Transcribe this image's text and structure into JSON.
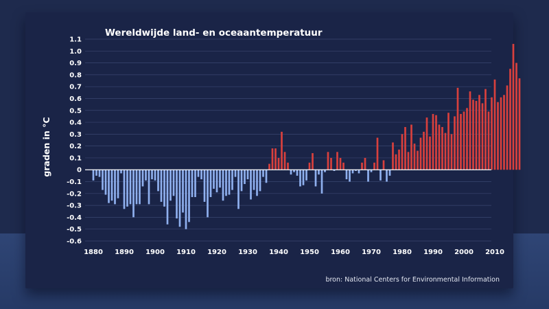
{
  "source_text": "bron: National Centers for Environmental Information",
  "chart_data": {
    "type": "bar",
    "title": "Wereldwijde land- en oceaantemperatuur",
    "xlabel": "",
    "ylabel": "graden in °C",
    "x_range": [
      1880,
      2018
    ],
    "ylim": [
      -0.6,
      1.1
    ],
    "x_ticks": [
      "1880",
      "1890",
      "1900",
      "1910",
      "1920",
      "1930",
      "1940",
      "1950",
      "1960",
      "1970",
      "1980",
      "1990",
      "2000",
      "2010"
    ],
    "y_ticks": [
      "1.1",
      "1.0",
      "0.9",
      "0.8",
      "0.7",
      "0.6",
      "0.5",
      "0.4",
      "0.3",
      "0.2",
      "0.1",
      "0",
      "-0.1",
      "-0.2",
      "-0.3",
      "-0.4",
      "-0.5",
      "-0.6"
    ],
    "grid": true,
    "colors": {
      "positive": "#d9403d",
      "negative": "#8fb0ee",
      "zero_line": "#ffffff",
      "grid": "#3a4670",
      "text": "#ffffff"
    },
    "years": [
      1880,
      1881,
      1882,
      1883,
      1884,
      1885,
      1886,
      1887,
      1888,
      1889,
      1890,
      1891,
      1892,
      1893,
      1894,
      1895,
      1896,
      1897,
      1898,
      1899,
      1900,
      1901,
      1902,
      1903,
      1904,
      1905,
      1906,
      1907,
      1908,
      1909,
      1910,
      1911,
      1912,
      1913,
      1914,
      1915,
      1916,
      1917,
      1918,
      1919,
      1920,
      1921,
      1922,
      1923,
      1924,
      1925,
      1926,
      1927,
      1928,
      1929,
      1930,
      1931,
      1932,
      1933,
      1934,
      1935,
      1936,
      1937,
      1938,
      1939,
      1940,
      1941,
      1942,
      1943,
      1944,
      1945,
      1946,
      1947,
      1948,
      1949,
      1950,
      1951,
      1952,
      1953,
      1954,
      1955,
      1956,
      1957,
      1958,
      1959,
      1960,
      1961,
      1962,
      1963,
      1964,
      1965,
      1966,
      1967,
      1968,
      1969,
      1970,
      1971,
      1972,
      1973,
      1974,
      1975,
      1976,
      1977,
      1978,
      1979,
      1980,
      1981,
      1982,
      1983,
      1984,
      1985,
      1986,
      1987,
      1988,
      1989,
      1990,
      1991,
      1992,
      1993,
      1994,
      1995,
      1996,
      1997,
      1998,
      1999,
      2000,
      2001,
      2002,
      2003,
      2004,
      2005,
      2006,
      2007,
      2008,
      2009,
      2010,
      2011,
      2012,
      2013,
      2014,
      2015,
      2016,
      2017,
      2018
    ],
    "values": [
      -0.09,
      -0.05,
      -0.06,
      -0.17,
      -0.21,
      -0.28,
      -0.26,
      -0.29,
      -0.24,
      -0.03,
      -0.33,
      -0.31,
      -0.29,
      -0.4,
      -0.29,
      -0.29,
      -0.14,
      -0.09,
      -0.29,
      -0.08,
      -0.09,
      -0.18,
      -0.27,
      -0.31,
      -0.46,
      -0.26,
      -0.22,
      -0.41,
      -0.48,
      -0.36,
      -0.5,
      -0.44,
      -0.23,
      -0.23,
      -0.06,
      -0.08,
      -0.27,
      -0.4,
      -0.23,
      -0.16,
      -0.19,
      -0.15,
      -0.26,
      -0.22,
      -0.21,
      -0.17,
      -0.06,
      -0.33,
      -0.18,
      -0.12,
      -0.08,
      -0.25,
      -0.17,
      -0.22,
      -0.18,
      -0.06,
      -0.11,
      0.05,
      0.18,
      0.18,
      0.1,
      0.32,
      0.15,
      0.06,
      -0.04,
      -0.02,
      -0.05,
      -0.14,
      -0.13,
      -0.09,
      0.06,
      0.14,
      -0.14,
      -0.04,
      -0.2,
      -0.02,
      0.15,
      0.1,
      -0.01,
      0.15,
      0.1,
      0.06,
      -0.08,
      -0.1,
      -0.03,
      -0.01,
      -0.03,
      0.06,
      0.1,
      -0.1,
      -0.02,
      0.06,
      0.27,
      -0.09,
      0.08,
      -0.1,
      -0.05,
      0.23,
      0.13,
      0.17,
      0.3,
      0.36,
      0.15,
      0.38,
      0.22,
      0.16,
      0.27,
      0.32,
      0.44,
      0.28,
      0.47,
      0.46,
      0.38,
      0.36,
      0.31,
      0.48,
      0.3,
      0.45,
      0.69,
      0.47,
      0.49,
      0.52,
      0.66,
      0.59,
      0.58,
      0.63,
      0.56,
      0.68,
      0.49,
      0.61,
      0.76,
      0.57,
      0.61,
      0.63,
      0.71,
      0.85,
      1.06,
      0.9,
      0.77
    ]
  }
}
